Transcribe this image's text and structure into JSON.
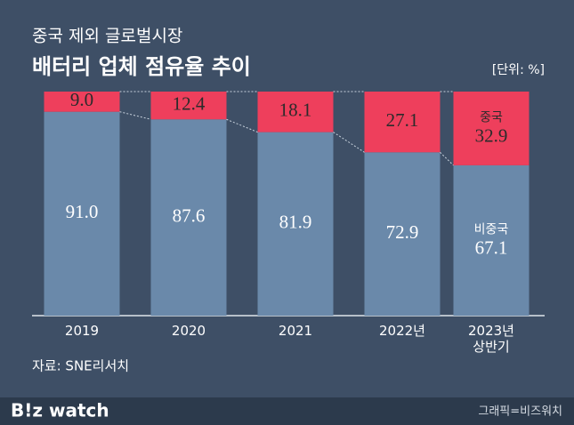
{
  "chart_data": {
    "type": "stacked-bar",
    "title": "중국 제외 글로벌시장",
    "subtitle": "배터리 업체 점유율 추이",
    "unit": "[단위: %]",
    "categories": [
      "2019",
      "2020",
      "2021",
      "2022년",
      "2023년\n상반기"
    ],
    "series": [
      {
        "name": "비중국",
        "color": "#6a89aa",
        "values": [
          91.0,
          87.6,
          81.9,
          72.9,
          67.1
        ],
        "value_labels": [
          "91.0",
          "87.6",
          "81.9",
          "72.9",
          "67.1"
        ]
      },
      {
        "name": "중국",
        "color": "#ee3f5c",
        "values": [
          9.0,
          12.4,
          18.1,
          27.1,
          32.9
        ],
        "value_labels": [
          "9.0",
          "12.4",
          "18.1",
          "27.1",
          "32.9"
        ]
      }
    ],
    "ylim": [
      0,
      100
    ],
    "source": "자료: SNE리서치",
    "brand": "B!z watch",
    "credit": "그래픽=비즈워치"
  }
}
